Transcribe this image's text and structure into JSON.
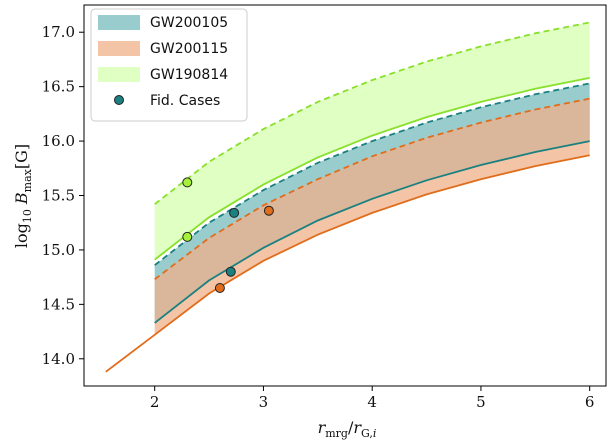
{
  "chart_data": {
    "type": "area",
    "title": "",
    "xlabel": "r_mrg / r_G,i",
    "ylabel": "log10 B_max [G]",
    "xlim": [
      1.35,
      6.15
    ],
    "ylim": [
      13.75,
      17.25
    ],
    "xticks": [
      "2",
      "3",
      "4",
      "5",
      "6"
    ],
    "yticks": [
      "14.0",
      "14.5",
      "15.0",
      "15.5",
      "16.0",
      "16.5",
      "17.0"
    ],
    "grid": false,
    "legend_position": "top-left",
    "series": [
      {
        "name": "GW200105",
        "color": "#7fbfc1",
        "edge_color": "#1b8080",
        "x": [
          2.0,
          2.5,
          3.0,
          3.5,
          4.0,
          4.5,
          5.0,
          5.5,
          6.0
        ],
        "lower": [
          14.33,
          14.72,
          15.02,
          15.27,
          15.47,
          15.64,
          15.78,
          15.9,
          16.0
        ],
        "upper": [
          14.86,
          15.25,
          15.55,
          15.8,
          16.0,
          16.17,
          16.31,
          16.43,
          16.53
        ]
      },
      {
        "name": "GW200115",
        "color": "#f0b08a",
        "edge_color": "#e06d1c",
        "x": [
          1.55,
          2.0,
          2.5,
          3.0,
          3.5,
          4.0,
          4.5,
          5.0,
          5.5,
          6.0
        ],
        "lower": [
          13.88,
          14.22,
          14.6,
          14.9,
          15.14,
          15.34,
          15.51,
          15.65,
          15.77,
          15.87
        ],
        "upper": [
          null,
          14.73,
          15.11,
          15.41,
          15.65,
          15.86,
          16.03,
          16.17,
          16.29,
          16.39
        ]
      },
      {
        "name": "GW190814",
        "color": "#ccff99",
        "edge_color": "#88e02a",
        "x": [
          2.0,
          2.5,
          3.0,
          3.5,
          4.0,
          4.5,
          5.0,
          5.5,
          6.0
        ],
        "lower": [
          14.91,
          15.3,
          15.6,
          15.85,
          16.05,
          16.22,
          16.36,
          16.48,
          16.58
        ],
        "upper": [
          15.42,
          15.81,
          16.11,
          16.36,
          16.56,
          16.73,
          16.87,
          16.99,
          17.09
        ]
      }
    ],
    "fiducial_cases": {
      "name": "Fid. Cases",
      "points": [
        {
          "series": "GW200105",
          "x": 2.7,
          "y": 14.8
        },
        {
          "series": "GW200105",
          "x": 2.73,
          "y": 15.34
        },
        {
          "series": "GW200115",
          "x": 2.6,
          "y": 14.65
        },
        {
          "series": "GW200115",
          "x": 3.05,
          "y": 15.36
        },
        {
          "series": "GW190814",
          "x": 2.3,
          "y": 15.12
        },
        {
          "series": "GW190814",
          "x": 2.3,
          "y": 15.62
        }
      ]
    }
  }
}
